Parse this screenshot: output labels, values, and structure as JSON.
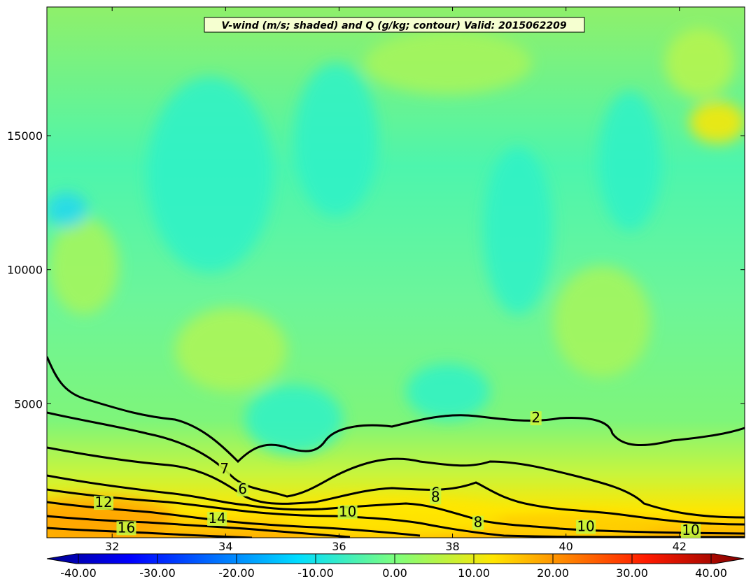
{
  "chart_data": {
    "type": "contour",
    "title": "V-wind (m/s; shaded) and Q (g/kg; contour) Valid: 2015062209",
    "x_ticks": [
      32,
      34,
      36,
      38,
      40,
      42
    ],
    "xlim": [
      30.85,
      43.15
    ],
    "y_ticks": [
      5000,
      10000,
      15000
    ],
    "ylim": [
      0,
      19800
    ],
    "shaded": {
      "variable": "V-wind",
      "units": "m/s",
      "levels": [
        -40,
        40
      ],
      "colorbar_ticks": [
        "-40.00",
        "-30.00",
        "-20.00",
        "-10.00",
        "0.00",
        "10.00",
        "20.00",
        "30.00",
        "40.00"
      ],
      "colorbar_extend": "both"
    },
    "contours": {
      "variable": "Q",
      "units": "g/kg",
      "labels": [
        {
          "text": "2",
          "x": 39.47,
          "y": 4300
        },
        {
          "text": "7",
          "x": 33.98,
          "y": 2400
        },
        {
          "text": "6",
          "x": 34.3,
          "y": 1650
        },
        {
          "text": "6",
          "x": 37.7,
          "y": 1500
        },
        {
          "text": "8",
          "x": 37.7,
          "y": 1350
        },
        {
          "text": "8",
          "x": 38.45,
          "y": 400
        },
        {
          "text": "10",
          "x": 36.15,
          "y": 800
        },
        {
          "text": "10",
          "x": 40.35,
          "y": 250
        },
        {
          "text": "10",
          "x": 42.2,
          "y": 100
        },
        {
          "text": "12",
          "x": 31.85,
          "y": 1150
        },
        {
          "text": "14",
          "x": 33.85,
          "y": 550
        },
        {
          "text": "16",
          "x": 32.25,
          "y": 200
        }
      ]
    }
  }
}
